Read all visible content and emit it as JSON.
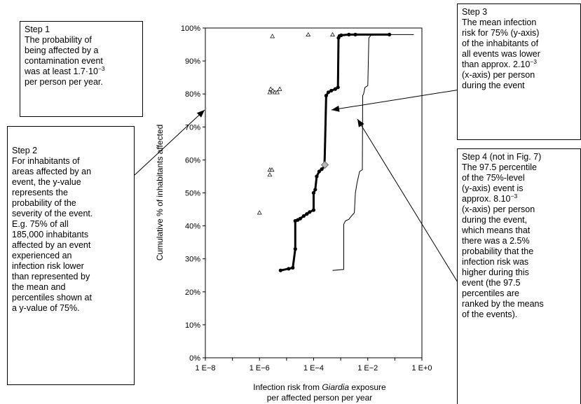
{
  "boxes": {
    "step1": {
      "title": "Step 1",
      "l1": "The probability of",
      "l2": "being affected by a",
      "l3": "contamination event",
      "l4a": "was at least 1.7·10",
      "l4sup": "−3",
      "l5": "per person per year."
    },
    "step2": {
      "title": "Step 2",
      "lines": [
        "For inhabitants of",
        "areas affected by an",
        "event, the y-value",
        "represents the",
        "probability of the",
        "severity of the event.",
        "E.g. 75% of all",
        "185,000 inhabitants",
        "affected by an event",
        "experienced an",
        "infection risk lower",
        "than represented by",
        "the  mean and",
        "percentiles shown at",
        "a y-value of 75%."
      ]
    },
    "step3": {
      "title": "Step 3",
      "l1": "The mean infection",
      "l2": "risk for 75% (y-axis)",
      "l3": "of the inhabitants of",
      "l4": "all events was lower",
      "l5a": "than approx. 2.10",
      "l5sup": "−3",
      "l6": "(x-axis) per person",
      "l7": "during the event"
    },
    "step4": {
      "title": "Step 4 (not in Fig. 7)",
      "l1": "The 97.5 percentile",
      "l2": "of the 75%-level",
      "l3": "(y-axis) event is",
      "l4a": "approx. 8.10",
      "l4sup": "−3",
      "lines": [
        "(x-axis) per person",
        "during the event,",
        "which means that",
        "there was a 2.5%",
        "probability that the",
        "infection risk was",
        "higher during this",
        "event (the 97.5",
        "percentiles are",
        "ranked by the means",
        "of the events)."
      ]
    }
  },
  "chart_data": {
    "type": "line",
    "xscale": "log",
    "xlim": [
      1e-08,
      1
    ],
    "ylim": [
      0,
      100
    ],
    "xticks": [
      "1 E−8",
      "1 E−6",
      "1 E−4",
      "1 E−2",
      "1 E+0"
    ],
    "yticks": [
      "0%",
      "10%",
      "20%",
      "30%",
      "40%",
      "50%",
      "60%",
      "70%",
      "80%",
      "90%",
      "100%"
    ],
    "ylabel": "Cumulative % of inhabitants affected",
    "xlabel_pre": "Infection risk from ",
    "xlabel_italic": "Giardia",
    "xlabel_post": " exposure",
    "xlabel_line2": "per affected person per year",
    "series": [
      {
        "role": "mean",
        "style": "thick line with filled circles",
        "points": [
          [
            6e-06,
            26.5
          ],
          [
            1.2e-05,
            27.0
          ],
          [
            1.7e-05,
            27.3
          ],
          [
            2.1e-05,
            33.0
          ],
          [
            2.1e-05,
            41.5
          ],
          [
            2.6e-05,
            41.8
          ],
          [
            3.2e-05,
            42.2
          ],
          [
            4.3e-05,
            43.0
          ],
          [
            5.6e-05,
            43.6
          ],
          [
            7.1e-05,
            44.2
          ],
          [
            0.0001,
            44.8
          ],
          [
            0.0001,
            50.0
          ],
          [
            0.000115,
            51.0
          ],
          [
            0.00013,
            55.0
          ],
          [
            0.00016,
            56.5
          ],
          [
            0.0002,
            57.2
          ],
          [
            0.00025,
            58.0
          ],
          [
            0.00026,
            62.0
          ],
          [
            0.00029,
            79.5
          ],
          [
            0.00035,
            80.5
          ],
          [
            0.00045,
            81.0
          ],
          [
            0.00063,
            81.5
          ],
          [
            0.00079,
            82.0
          ],
          [
            0.00083,
            97.0
          ],
          [
            0.0009,
            97.6
          ],
          [
            0.00105,
            97.8
          ],
          [
            0.002,
            98.0
          ],
          [
            0.0035,
            98.0
          ],
          [
            0.063,
            98.0
          ]
        ],
        "marked": [
          [
            6e-06,
            26.5
          ],
          [
            1.2e-05,
            27.0
          ],
          [
            1.7e-05,
            27.3
          ],
          [
            2.1e-05,
            33.0
          ],
          [
            2.1e-05,
            41.5
          ],
          [
            2.6e-05,
            41.8
          ],
          [
            3.2e-05,
            42.2
          ],
          [
            4.3e-05,
            43.0
          ],
          [
            5.6e-05,
            43.6
          ],
          [
            7.1e-05,
            44.2
          ],
          [
            0.0001,
            44.8
          ],
          [
            0.0001,
            50.0
          ],
          [
            0.000115,
            51.0
          ],
          [
            0.00013,
            55.0
          ],
          [
            0.00016,
            56.5
          ],
          [
            0.0002,
            57.2
          ],
          [
            0.00029,
            79.5
          ],
          [
            0.00035,
            80.5
          ],
          [
            0.00045,
            81.0
          ],
          [
            0.00063,
            81.5
          ],
          [
            0.00079,
            82.0
          ],
          [
            0.00083,
            97.0
          ],
          [
            0.0009,
            97.6
          ],
          [
            0.00105,
            97.8
          ],
          [
            0.002,
            98.0
          ],
          [
            0.0035,
            98.0
          ],
          [
            0.063,
            98.0
          ]
        ]
      },
      {
        "role": "97.5 percentile",
        "style": "thin line",
        "points": [
          [
            0.0005,
            26.5
          ],
          [
            0.0013,
            26.8
          ],
          [
            0.0013,
            40.5
          ],
          [
            0.0015,
            41.5
          ],
          [
            0.002,
            42.0
          ],
          [
            0.0025,
            43.0
          ],
          [
            0.0032,
            44.0
          ],
          [
            0.0035,
            50.0
          ],
          [
            0.004,
            53.0
          ],
          [
            0.005,
            56.5
          ],
          [
            0.0063,
            57.0
          ],
          [
            0.0065,
            79.5
          ],
          [
            0.007,
            80.0
          ],
          [
            0.0079,
            82.0
          ],
          [
            0.01,
            82.5
          ],
          [
            0.011,
            97.0
          ],
          [
            0.013,
            97.8
          ],
          [
            0.04,
            98.0
          ],
          [
            0.5,
            98.0
          ]
        ]
      },
      {
        "role": "single events",
        "style": "open triangles",
        "points": [
          [
            1e-06,
            44.0
          ],
          [
            2.4e-06,
            55.5
          ],
          [
            2.4e-06,
            57.0
          ],
          [
            2.9e-06,
            57.0
          ],
          [
            2.4e-06,
            80.5
          ],
          [
            2.6e-06,
            81.5
          ],
          [
            3.1e-06,
            81.0
          ],
          [
            3.7e-06,
            80.5
          ],
          [
            4.5e-06,
            80.5
          ],
          [
            5.6e-06,
            81.5
          ],
          [
            3e-06,
            97.5
          ],
          [
            6.3e-05,
            98.0
          ],
          [
            0.0005,
            98.0
          ]
        ]
      }
    ],
    "highlight": {
      "shape": "grey diamond",
      "point": [
        0.00026,
        58.5
      ]
    }
  }
}
